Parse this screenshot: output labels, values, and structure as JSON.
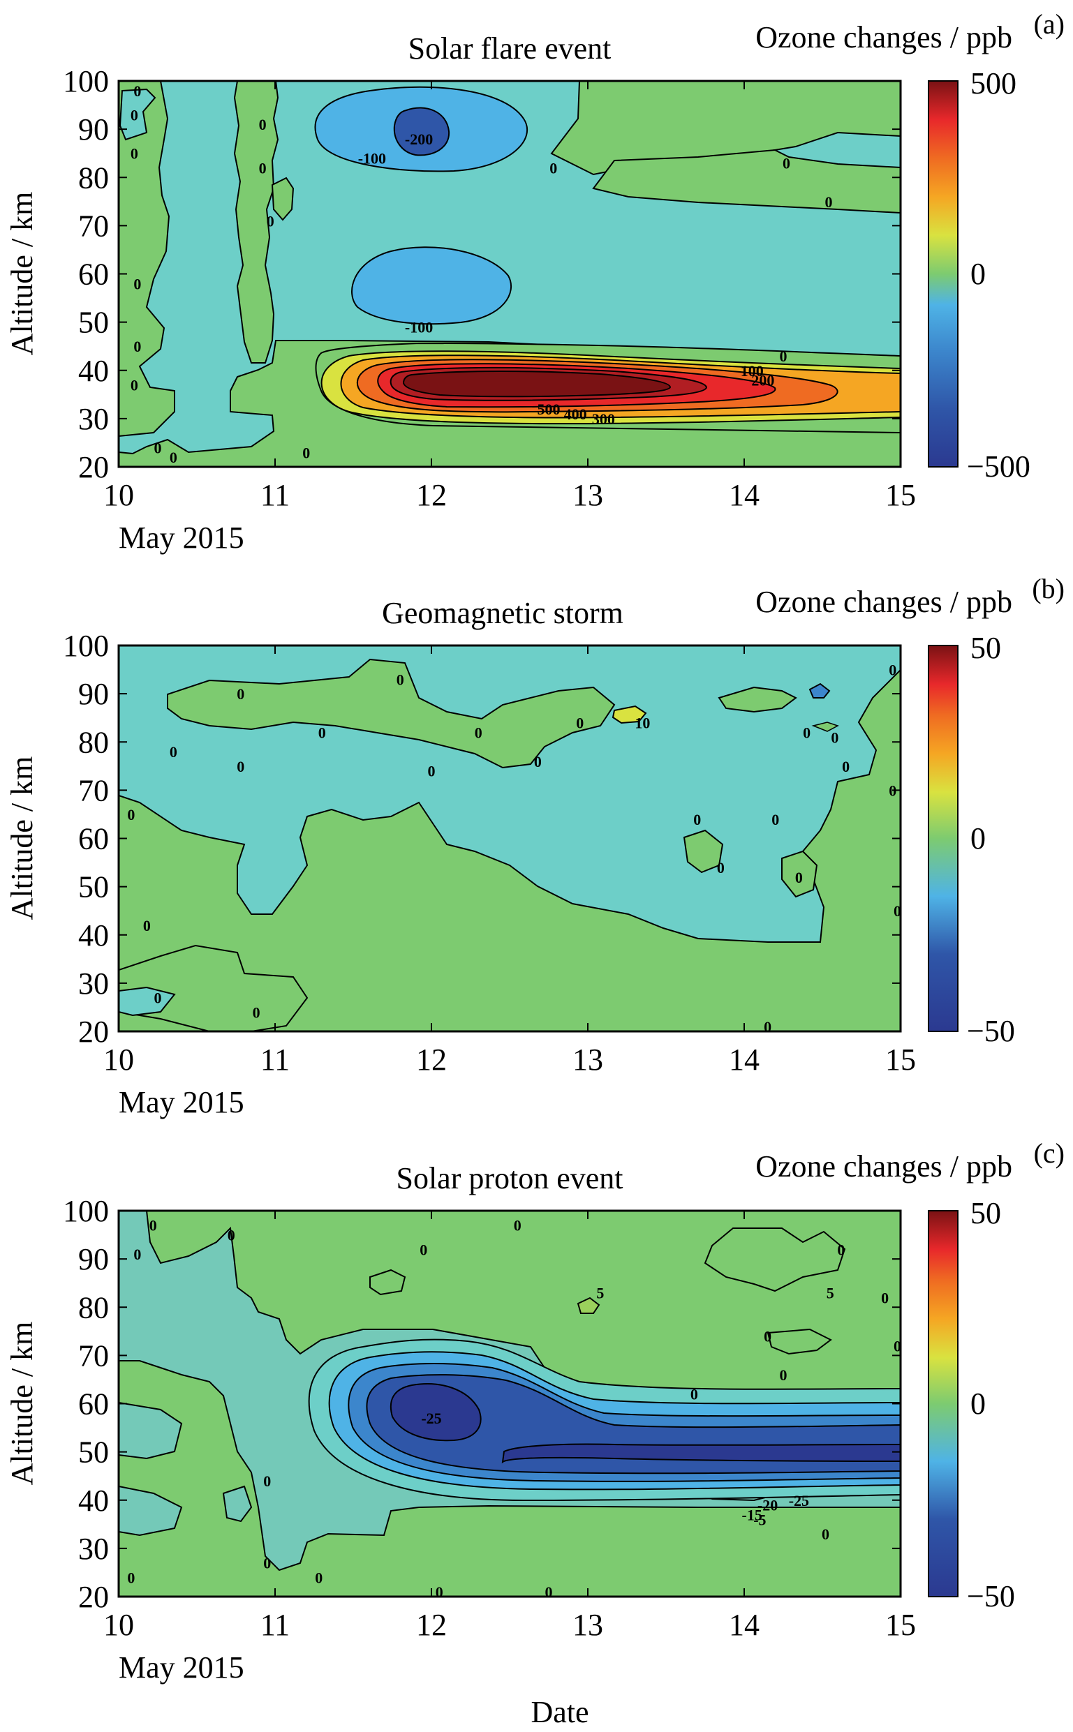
{
  "figure": {
    "xlabel": "Date",
    "palette": [
      "#2b3990",
      "#2f56a8",
      "#3c86cc",
      "#4fb3e6",
      "#6dcfc8",
      "#74c9b8",
      "#7dcb70",
      "#9bd15c",
      "#d9e240",
      "#f2d02e",
      "#f5a623",
      "#ef6b22",
      "#e8282b",
      "#b11e23",
      "#7a1214"
    ]
  },
  "chart_data": [
    {
      "type": "heatmap",
      "panel_letter": "(a)",
      "title": "Solar flare event",
      "colorbar_label": "Ozone changes / ppb",
      "colorbar_ticks": [
        "500",
        "0",
        "−500"
      ],
      "clim": [
        -500,
        500
      ],
      "ylabel": "Altitude / km",
      "ylim": [
        20,
        100
      ],
      "yticks": [
        "20",
        "30",
        "40",
        "50",
        "60",
        "70",
        "80",
        "90",
        "100"
      ],
      "xlim": [
        10,
        15
      ],
      "xticks": [
        "10",
        "11",
        "12",
        "13",
        "14",
        "15"
      ],
      "x_sublabel": "May 2015",
      "features": [
        {
          "kind": "ellipse",
          "cx": 12.65,
          "cy": 36.5,
          "rx": 1.2,
          "ry": 5.0,
          "value": 500
        },
        {
          "kind": "ellipse",
          "cx": 12.5,
          "cy": 88.5,
          "rx": 0.65,
          "ry": 6.5,
          "value": -100
        },
        {
          "kind": "ellipse",
          "cx": 12.0,
          "cy": 89.0,
          "rx": 0.25,
          "ry": 4.0,
          "value": -200
        },
        {
          "kind": "ellipse",
          "cx": 11.95,
          "cy": 56.0,
          "rx": 0.55,
          "ry": 8.5,
          "value": -100
        }
      ],
      "contour_labels": [
        {
          "text": "0",
          "x": 10.12,
          "y": 98
        },
        {
          "text": "0",
          "x": 10.1,
          "y": 93
        },
        {
          "text": "0",
          "x": 10.1,
          "y": 85
        },
        {
          "text": "0",
          "x": 10.92,
          "y": 91
        },
        {
          "text": "0",
          "x": 10.92,
          "y": 82
        },
        {
          "text": "0",
          "x": 10.97,
          "y": 71
        },
        {
          "text": "0",
          "x": 10.12,
          "y": 58
        },
        {
          "text": "0",
          "x": 10.12,
          "y": 45
        },
        {
          "text": "0",
          "x": 10.1,
          "y": 37
        },
        {
          "text": "0",
          "x": 10.25,
          "y": 24
        },
        {
          "text": "0",
          "x": 10.35,
          "y": 22
        },
        {
          "text": "0",
          "x": 11.2,
          "y": 23
        },
        {
          "text": "-100",
          "x": 11.62,
          "y": 84
        },
        {
          "text": "-200",
          "x": 11.92,
          "y": 88
        },
        {
          "text": "-100",
          "x": 11.92,
          "y": 49
        },
        {
          "text": "0",
          "x": 12.78,
          "y": 82
        },
        {
          "text": "0",
          "x": 14.27,
          "y": 83
        },
        {
          "text": "0",
          "x": 14.54,
          "y": 75
        },
        {
          "text": "0",
          "x": 14.25,
          "y": 43
        },
        {
          "text": "100",
          "x": 14.05,
          "y": 40
        },
        {
          "text": "200",
          "x": 14.12,
          "y": 38
        },
        {
          "text": "500",
          "x": 12.75,
          "y": 32
        },
        {
          "text": "400",
          "x": 12.92,
          "y": 31
        },
        {
          "text": "300",
          "x": 13.1,
          "y": 30
        }
      ]
    },
    {
      "type": "heatmap",
      "panel_letter": "(b)",
      "title": "Geomagnetic storm",
      "colorbar_label": "Ozone changes / ppb",
      "colorbar_ticks": [
        "50",
        "0",
        "−50"
      ],
      "clim": [
        -50,
        50
      ],
      "ylabel": "Altitude / km",
      "ylim": [
        20,
        100
      ],
      "yticks": [
        "20",
        "30",
        "40",
        "50",
        "60",
        "70",
        "80",
        "90",
        "100"
      ],
      "xlim": [
        10,
        15
      ],
      "xticks": [
        "10",
        "11",
        "12",
        "13",
        "14",
        "15"
      ],
      "x_sublabel": "May 2015",
      "features": [
        {
          "kind": "ellipse",
          "cx": 13.28,
          "cy": 85.5,
          "rx": 0.1,
          "ry": 1.8,
          "value": 10
        },
        {
          "kind": "ellipse",
          "cx": 14.52,
          "cy": 91.5,
          "rx": 0.08,
          "ry": 1.6,
          "value": -20
        }
      ],
      "contour_labels": [
        {
          "text": "0",
          "x": 11.8,
          "y": 93
        },
        {
          "text": "0",
          "x": 10.78,
          "y": 90
        },
        {
          "text": "0",
          "x": 11.3,
          "y": 82
        },
        {
          "text": "0",
          "x": 10.35,
          "y": 78
        },
        {
          "text": "0",
          "x": 10.78,
          "y": 75
        },
        {
          "text": "0",
          "x": 12.0,
          "y": 74
        },
        {
          "text": "0",
          "x": 12.3,
          "y": 82
        },
        {
          "text": "0",
          "x": 12.95,
          "y": 84
        },
        {
          "text": "10",
          "x": 13.35,
          "y": 84
        },
        {
          "text": "0",
          "x": 12.68,
          "y": 76
        },
        {
          "text": "0",
          "x": 14.4,
          "y": 82
        },
        {
          "text": "0",
          "x": 14.58,
          "y": 81
        },
        {
          "text": "0",
          "x": 14.65,
          "y": 75
        },
        {
          "text": "0",
          "x": 14.95,
          "y": 95
        },
        {
          "text": "0",
          "x": 14.95,
          "y": 70
        },
        {
          "text": "0",
          "x": 13.7,
          "y": 64
        },
        {
          "text": "0",
          "x": 14.2,
          "y": 64
        },
        {
          "text": "0",
          "x": 13.85,
          "y": 54
        },
        {
          "text": "0",
          "x": 14.35,
          "y": 52
        },
        {
          "text": "0",
          "x": 10.08,
          "y": 65
        },
        {
          "text": "0",
          "x": 10.18,
          "y": 42
        },
        {
          "text": "0",
          "x": 10.25,
          "y": 27
        },
        {
          "text": "0",
          "x": 10.88,
          "y": 24
        },
        {
          "text": "0",
          "x": 14.15,
          "y": 21
        },
        {
          "text": "0",
          "x": 14.98,
          "y": 45
        }
      ]
    },
    {
      "type": "heatmap",
      "panel_letter": "(c)",
      "title": "Solar proton event",
      "colorbar_label": "Ozone changes / ppb",
      "colorbar_ticks": [
        "50",
        "0",
        "−50"
      ],
      "clim": [
        -50,
        50
      ],
      "ylabel": "Altitude / km",
      "ylim": [
        20,
        100
      ],
      "yticks": [
        "20",
        "30",
        "40",
        "50",
        "60",
        "70",
        "80",
        "90",
        "100"
      ],
      "xlim": [
        10,
        15
      ],
      "xticks": [
        "10",
        "11",
        "12",
        "13",
        "14",
        "15"
      ],
      "x_sublabel": "May 2015",
      "features": [
        {
          "kind": "band",
          "value": -5
        },
        {
          "kind": "band",
          "value": -10
        },
        {
          "kind": "band",
          "value": -15
        },
        {
          "kind": "band",
          "value": -20
        },
        {
          "kind": "band",
          "value": -25
        },
        {
          "kind": "ellipse",
          "cx": 13.28,
          "cy": 83.5,
          "rx": 0.06,
          "ry": 1.5,
          "value": 5
        }
      ],
      "contour_labels": [
        {
          "text": "0",
          "x": 10.22,
          "y": 97
        },
        {
          "text": "0",
          "x": 10.12,
          "y": 91
        },
        {
          "text": "0",
          "x": 10.72,
          "y": 95
        },
        {
          "text": "0",
          "x": 11.95,
          "y": 92
        },
        {
          "text": "0",
          "x": 12.55,
          "y": 97
        },
        {
          "text": "5",
          "x": 13.08,
          "y": 83
        },
        {
          "text": "5",
          "x": 14.55,
          "y": 83
        },
        {
          "text": "0",
          "x": 14.62,
          "y": 92
        },
        {
          "text": "0",
          "x": 14.9,
          "y": 82
        },
        {
          "text": "0",
          "x": 14.98,
          "y": 72
        },
        {
          "text": "0",
          "x": 14.15,
          "y": 74
        },
        {
          "text": "0",
          "x": 13.68,
          "y": 62
        },
        {
          "text": "0",
          "x": 14.25,
          "y": 66
        },
        {
          "text": "0",
          "x": 10.95,
          "y": 44
        },
        {
          "text": "0",
          "x": 10.95,
          "y": 27
        },
        {
          "text": "0",
          "x": 10.08,
          "y": 24
        },
        {
          "text": "0",
          "x": 11.28,
          "y": 24
        },
        {
          "text": "0",
          "x": 12.05,
          "y": 21
        },
        {
          "text": "0",
          "x": 12.75,
          "y": 21
        },
        {
          "text": "0",
          "x": 14.52,
          "y": 33
        },
        {
          "text": "-25",
          "x": 12.0,
          "y": 57
        },
        {
          "text": "-25",
          "x": 14.35,
          "y": 40
        },
        {
          "text": "-20",
          "x": 14.15,
          "y": 39
        },
        {
          "text": "-15",
          "x": 14.05,
          "y": 37
        },
        {
          "text": "-5",
          "x": 14.1,
          "y": 36
        }
      ]
    }
  ]
}
